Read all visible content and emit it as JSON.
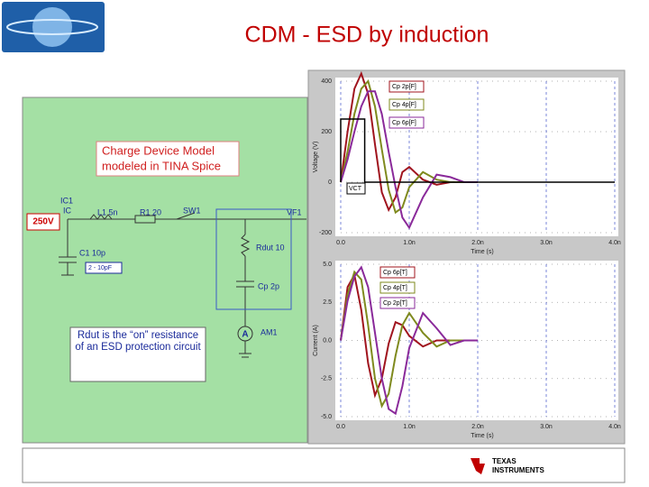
{
  "header": {
    "title": "CDM - ESD by induction"
  },
  "schematic": {
    "callout": [
      "Charge Device Model",
      "modeled in TINA Spice"
    ],
    "source": "250V",
    "ic_ref": "IC1",
    "ic_name": "IC",
    "inductor": "L1 5n",
    "resistor": "R1 20",
    "switch": "SW1",
    "probe": "VF1",
    "capacitor": "C1 10p",
    "capacitor_range": "2 - 10pF",
    "rdut": "Rdut 10",
    "cp": "Cp 2p",
    "ammeter_symbol": "A",
    "ammeter": "AM1",
    "note": "Rdut is the “on” resistance of an ESD protection circuit"
  },
  "chart_data": [
    {
      "type": "line",
      "x_label": "Time (s)",
      "y_label": "Voltage (V)",
      "x": [
        0,
        0.1,
        0.2,
        0.3,
        0.4,
        0.5,
        0.6,
        0.7,
        0.8,
        0.9,
        1.0,
        1.2,
        1.4,
        1.6,
        1.8,
        2.0
      ],
      "xlim": [
        0,
        4
      ],
      "xticks": [
        {
          "value": 0,
          "label": "0.0"
        },
        {
          "value": 1,
          "label": "1.0n"
        },
        {
          "value": 2,
          "label": "2.0n"
        },
        {
          "value": 3,
          "label": "3.0n"
        },
        {
          "value": 4,
          "label": "4.0n"
        }
      ],
      "ylim": [
        -200,
        400
      ],
      "yticks": [
        400,
        200,
        0,
        -200
      ],
      "series": [
        {
          "name": "Cp 2p[F]",
          "color": "#a0141e",
          "values": [
            0,
            200,
            370,
            430,
            350,
            150,
            -40,
            -110,
            -60,
            40,
            60,
            10,
            -10,
            0,
            0,
            0
          ]
        },
        {
          "name": "Cp 4p[F]",
          "color": "#7f8a1e",
          "values": [
            0,
            120,
            270,
            370,
            400,
            300,
            130,
            -30,
            -120,
            -100,
            -20,
            40,
            10,
            0,
            0,
            0
          ]
        },
        {
          "name": "Cp 6p[F]",
          "color": "#8a2a9a",
          "values": [
            0,
            90,
            200,
            300,
            360,
            360,
            270,
            120,
            -20,
            -140,
            -180,
            -60,
            30,
            20,
            0,
            0
          ]
        },
        {
          "name": "VCT",
          "color": "#000000",
          "x": [
            0,
            0,
            0.35,
            0.35,
            4
          ],
          "values": [
            0,
            250,
            250,
            0,
            0
          ]
        }
      ]
    },
    {
      "type": "line",
      "x_label": "Time (s)",
      "y_label": "Current (A)",
      "x": [
        0,
        0.1,
        0.2,
        0.3,
        0.4,
        0.5,
        0.6,
        0.7,
        0.8,
        0.9,
        1.0,
        1.2,
        1.4,
        1.6,
        1.8,
        2.0
      ],
      "xlim": [
        0,
        4
      ],
      "xticks": [
        {
          "value": 0,
          "label": "0.0"
        },
        {
          "value": 1,
          "label": "1.0n"
        },
        {
          "value": 2,
          "label": "2.0n"
        },
        {
          "value": 3,
          "label": "3.0n"
        },
        {
          "value": 4,
          "label": "4.0n"
        }
      ],
      "ylim": [
        -5,
        5
      ],
      "yticks": [
        {
          "value": 5,
          "label": "5.0"
        },
        {
          "value": 2.5,
          "label": "2.5"
        },
        {
          "value": 0,
          "label": "0.0"
        },
        {
          "value": -2.5,
          "label": "-2.5"
        },
        {
          "value": -5,
          "label": "-5.0"
        }
      ],
      "series": [
        {
          "name": "Cp 6p[T]",
          "color": "#a0141e",
          "values": [
            0,
            3.5,
            4.3,
            2.0,
            -1.5,
            -3.6,
            -2.5,
            -0.2,
            1.2,
            1.0,
            0.3,
            -0.4,
            0,
            0,
            0,
            0
          ]
        },
        {
          "name": "Cp 4p[T]",
          "color": "#7f8a1e",
          "values": [
            0,
            3.0,
            4.5,
            4.0,
            1.0,
            -2.5,
            -4.3,
            -3.5,
            -1.0,
            1.0,
            1.8,
            0.5,
            -0.4,
            0,
            0,
            0
          ]
        },
        {
          "name": "Cp 2p[T]",
          "color": "#8a2a9a",
          "values": [
            0,
            2.6,
            4.2,
            4.8,
            3.5,
            0.5,
            -2.5,
            -4.5,
            -4.8,
            -3.0,
            -0.5,
            1.8,
            0.8,
            -0.3,
            0,
            0
          ]
        }
      ]
    }
  ],
  "footer": {
    "logo": [
      "TEXAS",
      "INSTRUMENTS"
    ]
  }
}
